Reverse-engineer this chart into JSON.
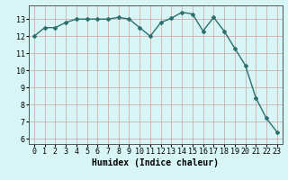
{
  "x": [
    0,
    1,
    2,
    3,
    4,
    5,
    6,
    7,
    8,
    9,
    10,
    11,
    12,
    13,
    14,
    15,
    16,
    17,
    18,
    19,
    20,
    21,
    22,
    23
  ],
  "y": [
    12.0,
    12.5,
    12.5,
    12.8,
    13.0,
    13.0,
    13.0,
    13.0,
    13.1,
    13.0,
    12.5,
    12.0,
    12.8,
    13.05,
    13.4,
    13.3,
    12.3,
    13.1,
    12.3,
    11.3,
    10.3,
    8.4,
    7.2,
    6.4
  ],
  "line_color": "#2d6e6e",
  "marker": "D",
  "marker_size": 2.0,
  "linewidth": 1.0,
  "bg_color": "#d8f5f5",
  "grid_color_minor": "#d0a0a0",
  "grid_color_major": "#d0a0a0",
  "xlabel": "Humidex (Indice chaleur)",
  "xlim": [
    -0.5,
    23.5
  ],
  "ylim": [
    5.7,
    13.8
  ],
  "yticks": [
    6,
    7,
    8,
    9,
    10,
    11,
    12,
    13
  ],
  "xticks": [
    0,
    1,
    2,
    3,
    4,
    5,
    6,
    7,
    8,
    9,
    10,
    11,
    12,
    13,
    14,
    15,
    16,
    17,
    18,
    19,
    20,
    21,
    22,
    23
  ],
  "xlabel_fontsize": 7.0,
  "tick_fontsize": 6.0
}
